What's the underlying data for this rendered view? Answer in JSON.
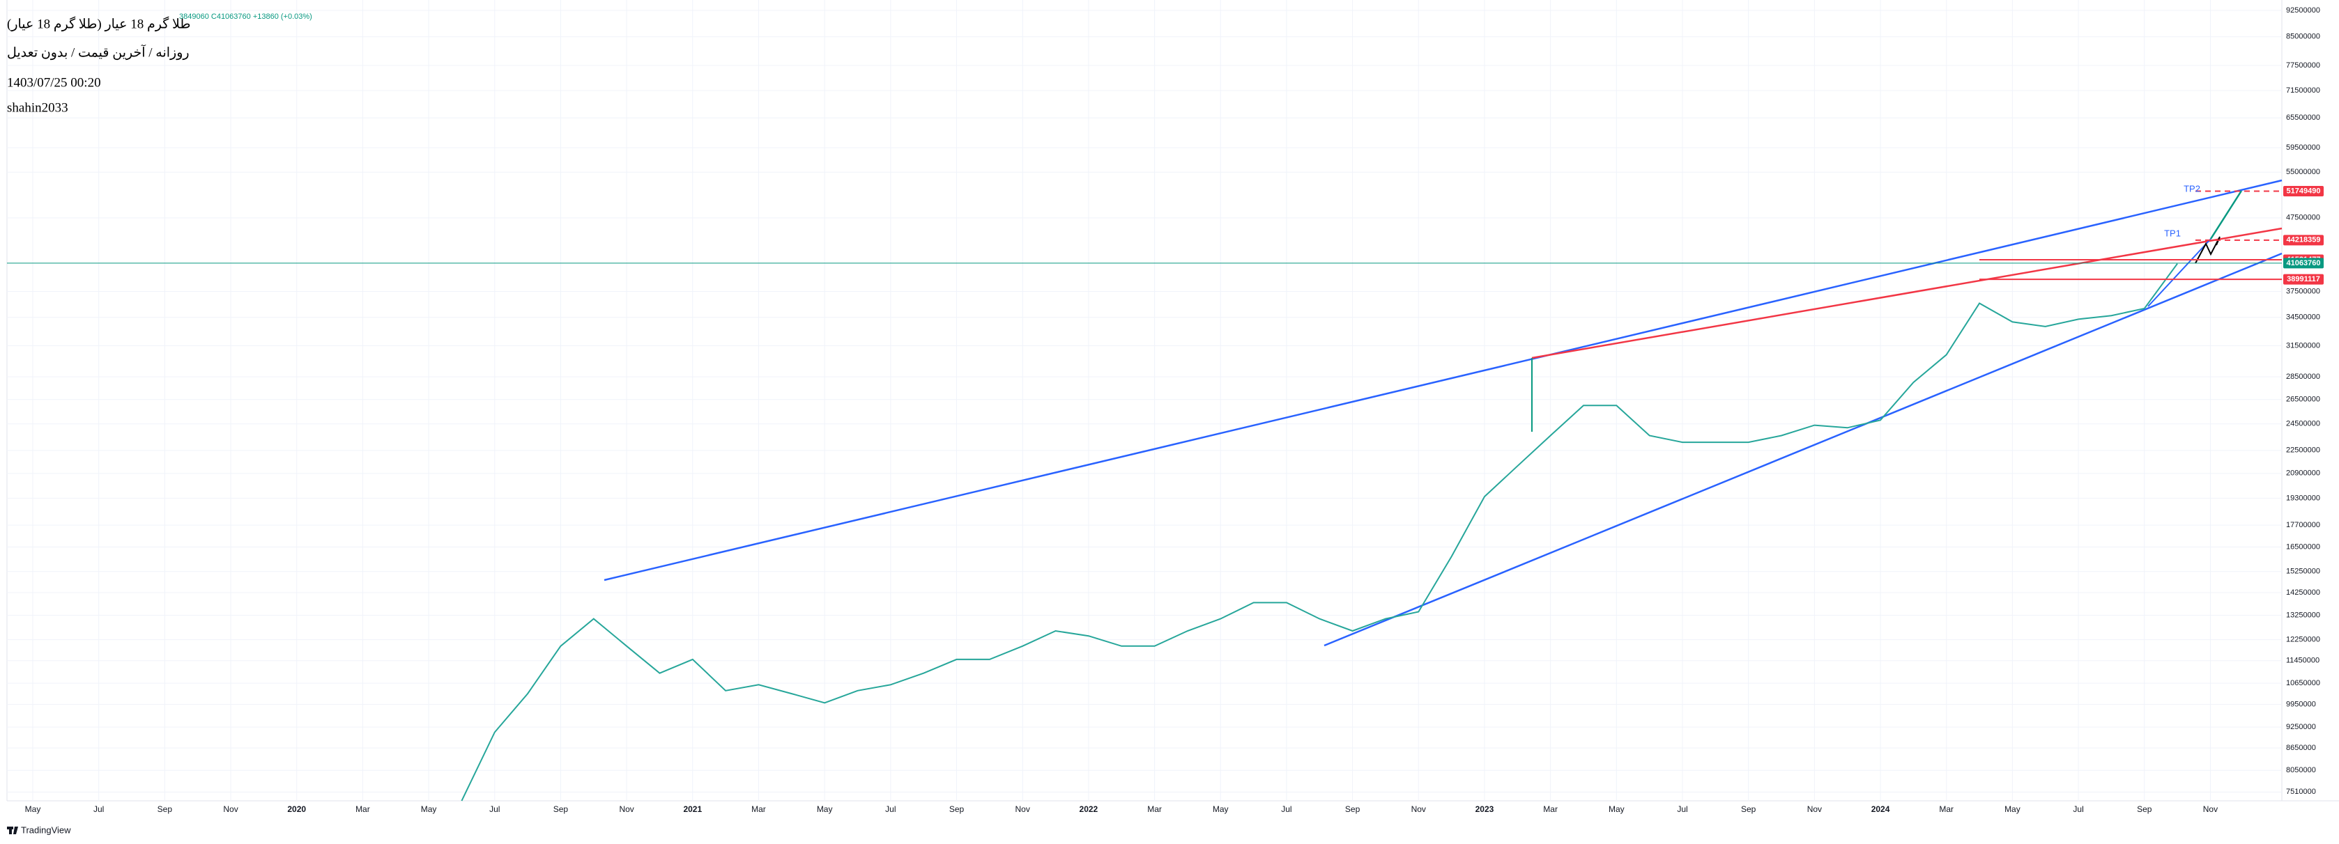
{
  "chart_data": {
    "type": "line",
    "title": "طلا گرم 18 عیار (طلا گرم 18 عیار)",
    "subtitle": "روزانه / آخرین قیمت / بدون تعدیل",
    "ohlc": "3849060 C41063760 +13860 (+0.03%)",
    "date": "1403/07/25 00:20",
    "author": "shahin2033",
    "watermark": "TradingView",
    "log_scale": true,
    "grid": true,
    "color": "#26a69a",
    "categories": [
      "May",
      null,
      "Jul",
      null,
      "Sep",
      null,
      "Nov",
      null,
      "2020",
      null,
      "Mar",
      null,
      "May",
      null,
      "Jul",
      null,
      "Sep",
      null,
      "Nov",
      null,
      "2021",
      null,
      "Mar",
      null,
      "May",
      null,
      "Jul",
      null,
      "Sep",
      null,
      "Nov",
      null,
      "2022",
      null,
      "Mar",
      null,
      "May",
      null,
      "Jul",
      null,
      "Sep",
      null,
      "Nov",
      null,
      "2023",
      null,
      "Mar",
      null,
      "May",
      null,
      "Jul",
      null,
      "Sep",
      null,
      "Nov",
      null,
      "2024",
      null,
      "Mar",
      null,
      "May",
      null,
      "Jul",
      null,
      "Sep",
      null,
      "Nov",
      null
    ],
    "values": [
      null,
      null,
      null,
      null,
      null,
      null,
      null,
      null,
      null,
      null,
      null,
      null,
      null,
      7300000,
      9100000,
      10300000,
      12000000,
      13100000,
      12000000,
      11000000,
      11500000,
      10400000,
      10600000,
      10300000,
      10000000,
      10400000,
      10600000,
      11000000,
      11500000,
      11500000,
      12000000,
      12600000,
      12400000,
      12000000,
      12000000,
      12600000,
      13100000,
      13800000,
      13800000,
      13100000,
      12600000,
      13100000,
      13400000,
      16000000,
      19400000,
      21400000,
      23600000,
      26000000,
      26000000,
      23600000,
      23100000,
      23100000,
      23100000,
      23600000,
      24400000,
      24200000,
      24800000,
      28000000,
      30600000,
      36100000,
      34000000,
      33500000,
      34300000,
      34700000,
      35500000,
      41000000,
      null,
      null
    ],
    "ylim": [
      7300000,
      95000000
    ],
    "yticks": [
      92500000,
      85000000,
      77500000,
      71500000,
      65500000,
      59500000,
      55000000,
      47500000,
      37500000,
      34500000,
      31500000,
      28500000,
      26500000,
      24500000,
      22500000,
      20900000,
      19300000,
      17700000,
      16500000,
      15250000,
      14250000,
      13250000,
      12250000,
      11450000,
      10650000,
      9950000,
      9250000,
      8650000,
      8050000,
      7510000
    ],
    "price_lines": [
      {
        "value": 51749490,
        "color": "#f23645",
        "line": "dashed"
      },
      {
        "value": 44218359,
        "color": "#f23645",
        "line": "dashed"
      },
      {
        "value": 41521477,
        "color": "#f23645",
        "line": "solid"
      },
      {
        "value": 41063760,
        "color": "#089981",
        "line": "full"
      },
      {
        "value": 38991117,
        "color": "#f23645",
        "line": "solid"
      }
    ],
    "annotations": [
      "TP2",
      "TP1"
    ]
  }
}
